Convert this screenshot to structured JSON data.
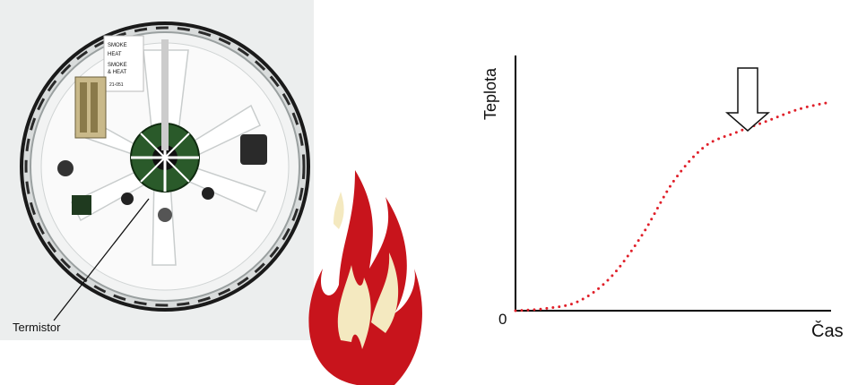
{
  "detector": {
    "callout_label": "Termistor",
    "sticker_lines": [
      "SMOKE",
      "HEAT",
      "SMOKE",
      "& HEAT",
      "21-051"
    ]
  },
  "graph": {
    "y_axis_label": "Teplota",
    "x_axis_label": "Čas",
    "origin_label": "0",
    "curve_color": "#e0202a",
    "arrow_icon": "down-arrow-icon"
  },
  "chart_data": {
    "type": "line",
    "title": "",
    "xlabel": "Čas",
    "ylabel": "Teplota",
    "series": [
      {
        "x": [
          0,
          0.1,
          0.2,
          0.3,
          0.4,
          0.5,
          0.6,
          0.7,
          0.8,
          0.9,
          1.0
        ],
        "y": [
          0,
          0.01,
          0.04,
          0.14,
          0.32,
          0.55,
          0.7,
          0.76,
          0.81,
          0.86,
          0.89
        ]
      }
    ],
    "xlim": [
      0,
      1
    ],
    "ylim": [
      0,
      1
    ],
    "grid": false
  },
  "colors": {
    "flame_outer": "#c8141c",
    "flame_inner": "#f4e9c0",
    "detector_ring": "#e8e8e8",
    "detector_rim": "#111111",
    "sensor_pcb": "#2a5a2a"
  }
}
